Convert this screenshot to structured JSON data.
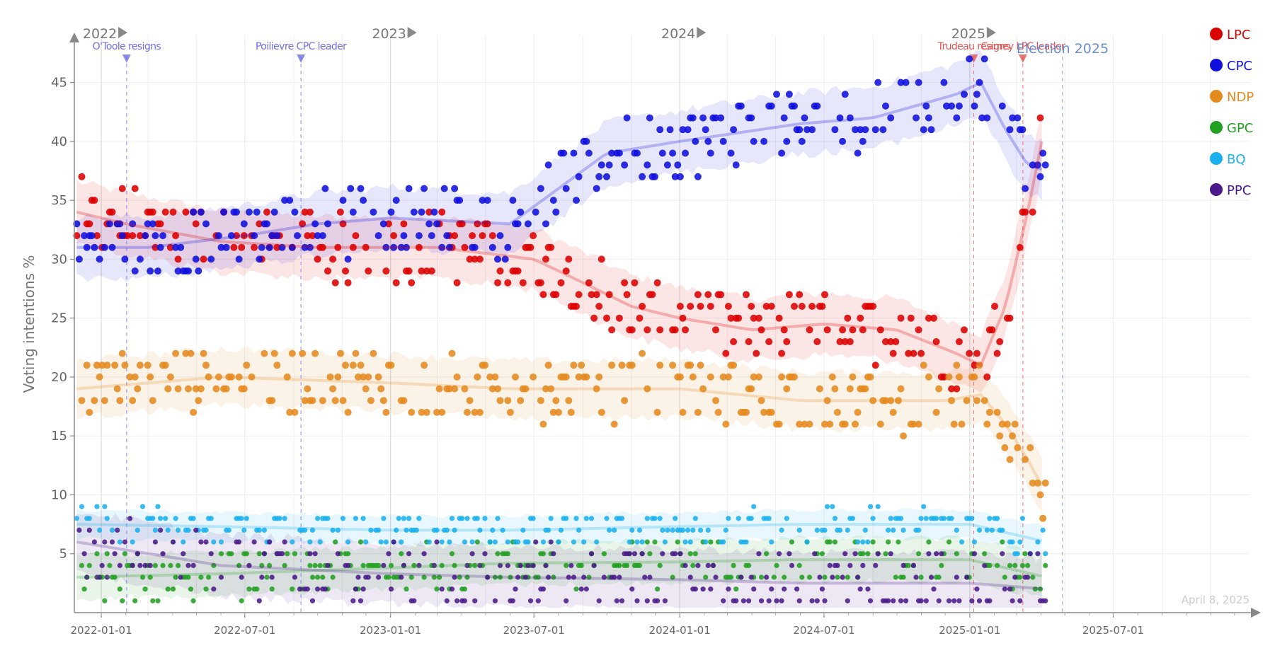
{
  "chart_data": {
    "type": "scatter",
    "title": "",
    "ylabel": "Voting intentions %",
    "xlabel": "",
    "date_label": "April 8, 2025",
    "xlim": [
      "2021-11-28",
      "2025-12-20"
    ],
    "ylim": [
      0,
      49
    ],
    "x_ticks": [
      "2022-01-01",
      "2022-07-01",
      "2023-01-01",
      "2023-07-01",
      "2024-01-01",
      "2024-07-01",
      "2025-01-01",
      "2025-07-01"
    ],
    "y_ticks": [
      5,
      10,
      15,
      20,
      25,
      30,
      35,
      40,
      45
    ],
    "year_markers": [
      {
        "label": "2022",
        "date": "2022-01-01"
      },
      {
        "label": "2023",
        "date": "2023-01-01"
      },
      {
        "label": "2024",
        "date": "2024-01-01"
      },
      {
        "label": "2025",
        "date": "2025-01-01"
      }
    ],
    "events": [
      {
        "label": "O'Toole resigns",
        "date": "2022-02-02",
        "color": "#7070e0"
      },
      {
        "label": "Poilievre CPC leader",
        "date": "2022-09-10",
        "color": "#7070e0"
      },
      {
        "label": "Trudeau resigns",
        "date": "2025-01-06",
        "color": "#e05555"
      },
      {
        "label": "Carney LPC leader",
        "date": "2025-03-09",
        "color": "#e05555"
      },
      {
        "label": "Election 2025",
        "date": "2025-04-28",
        "color": "#6a8fd0"
      }
    ],
    "legend_position": "top-right",
    "grid": true,
    "series": [
      {
        "name": "LPC",
        "color": "#dd0000",
        "band": 2.6,
        "trend": [
          [
            "2021-12-01",
            34
          ],
          [
            "2022-02-01",
            33
          ],
          [
            "2022-06-01",
            31.5
          ],
          [
            "2022-10-01",
            31
          ],
          [
            "2023-03-01",
            31
          ],
          [
            "2023-07-01",
            30
          ],
          [
            "2023-09-01",
            28
          ],
          [
            "2023-11-01",
            26
          ],
          [
            "2024-01-01",
            25
          ],
          [
            "2024-04-01",
            24
          ],
          [
            "2024-07-01",
            24.5
          ],
          [
            "2024-10-01",
            24
          ],
          [
            "2024-12-15",
            22
          ],
          [
            "2025-01-15",
            21
          ],
          [
            "2025-02-15",
            26
          ],
          [
            "2025-03-15",
            34
          ],
          [
            "2025-04-08",
            42
          ]
        ]
      },
      {
        "name": "CPC",
        "color": "#1010dd",
        "band": 2.6,
        "trend": [
          [
            "2021-12-01",
            31
          ],
          [
            "2022-03-01",
            31
          ],
          [
            "2022-07-01",
            32
          ],
          [
            "2022-10-01",
            33
          ],
          [
            "2023-01-01",
            33.5
          ],
          [
            "2023-06-01",
            33
          ],
          [
            "2023-08-01",
            36
          ],
          [
            "2023-10-01",
            39
          ],
          [
            "2024-01-01",
            40
          ],
          [
            "2024-06-01",
            41.5
          ],
          [
            "2024-09-01",
            42
          ],
          [
            "2024-12-15",
            44
          ],
          [
            "2025-01-15",
            45
          ],
          [
            "2025-02-15",
            41
          ],
          [
            "2025-03-15",
            38
          ],
          [
            "2025-04-08",
            37.5
          ]
        ]
      },
      {
        "name": "NDP",
        "color": "#e58a1f",
        "band": 2.4,
        "trend": [
          [
            "2021-12-01",
            19
          ],
          [
            "2022-06-01",
            20
          ],
          [
            "2023-01-01",
            19.5
          ],
          [
            "2023-06-01",
            19
          ],
          [
            "2024-01-01",
            19
          ],
          [
            "2024-06-01",
            18
          ],
          [
            "2024-12-01",
            18
          ],
          [
            "2025-01-15",
            18.5
          ],
          [
            "2025-02-15",
            16
          ],
          [
            "2025-03-15",
            13
          ],
          [
            "2025-04-08",
            10
          ]
        ]
      },
      {
        "name": "GPC",
        "color": "#22a022",
        "band": 1.8,
        "trend": [
          [
            "2021-12-01",
            3
          ],
          [
            "2022-06-01",
            3.3
          ],
          [
            "2023-01-01",
            3.8
          ],
          [
            "2023-06-01",
            4.2
          ],
          [
            "2024-01-01",
            4.3
          ],
          [
            "2024-06-01",
            4.5
          ],
          [
            "2025-01-01",
            4.5
          ],
          [
            "2025-04-08",
            3
          ]
        ]
      },
      {
        "name": "BQ",
        "color": "#1ab0ee",
        "band": 1.2,
        "trend": [
          [
            "2021-12-01",
            7.5
          ],
          [
            "2022-06-01",
            7.3
          ],
          [
            "2023-01-01",
            7
          ],
          [
            "2023-06-01",
            7
          ],
          [
            "2024-01-01",
            7.3
          ],
          [
            "2024-06-01",
            7.5
          ],
          [
            "2025-01-01",
            7.5
          ],
          [
            "2025-04-08",
            6
          ]
        ]
      },
      {
        "name": "PPC",
        "color": "#4a1a8a",
        "band": 2.6,
        "trend": [
          [
            "2021-12-01",
            6
          ],
          [
            "2022-06-01",
            4
          ],
          [
            "2023-01-01",
            3.3
          ],
          [
            "2023-06-01",
            3
          ],
          [
            "2024-01-01",
            2.8
          ],
          [
            "2024-06-01",
            2.5
          ],
          [
            "2025-01-01",
            2.5
          ],
          [
            "2025-04-08",
            2
          ]
        ]
      }
    ]
  }
}
